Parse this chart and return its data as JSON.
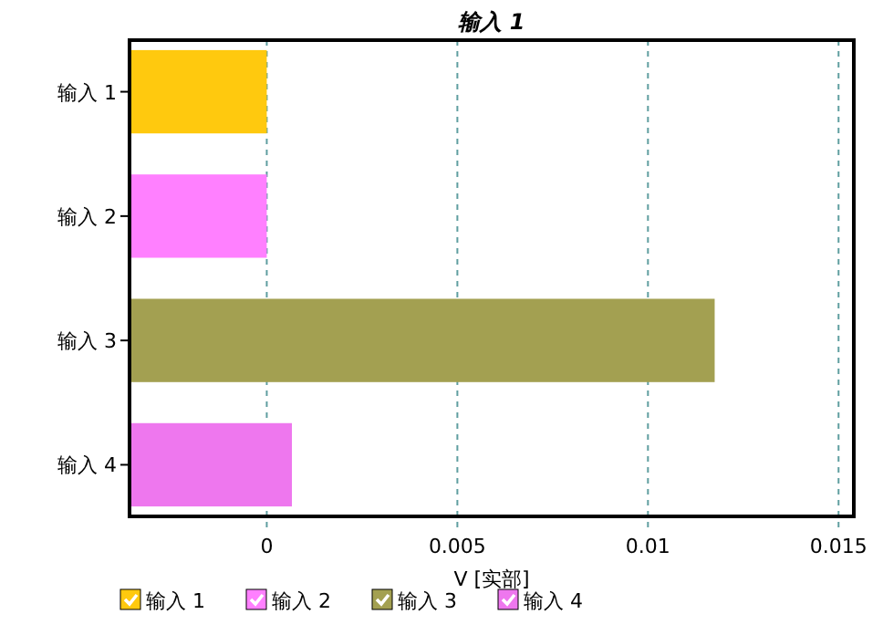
{
  "chart_data": {
    "type": "bar",
    "orientation": "horizontal",
    "title": "输入 1",
    "xlabel": "V [实部]",
    "categories": [
      "输入 1",
      "输入 2",
      "输入 3",
      "输入 4"
    ],
    "series": [
      {
        "name": "输入 1",
        "color": "#ffc90e",
        "base": [
          -0.0036,
          null,
          null,
          null
        ],
        "values": [
          0.0036,
          null,
          null,
          null
        ]
      },
      {
        "name": "输入 2",
        "color": "#ff80ff",
        "base": [
          null,
          -0.0036,
          null,
          null
        ],
        "values": [
          null,
          0.0036,
          null,
          null
        ]
      },
      {
        "name": "输入 3",
        "color": "#a3a051",
        "base": [
          null,
          null,
          -0.0036,
          null
        ],
        "values": [
          null,
          null,
          0.01535,
          null
        ]
      },
      {
        "name": "输入 4",
        "color": "#ee77ee",
        "base": [
          null,
          null,
          null,
          -0.0036
        ],
        "values": [
          null,
          null,
          null,
          0.00426
        ]
      }
    ],
    "xlim": [
      -0.0036,
      0.0154
    ],
    "xticks": [
      0,
      0.005,
      0.01,
      0.015
    ],
    "grid": "x",
    "legend": "bottom"
  }
}
